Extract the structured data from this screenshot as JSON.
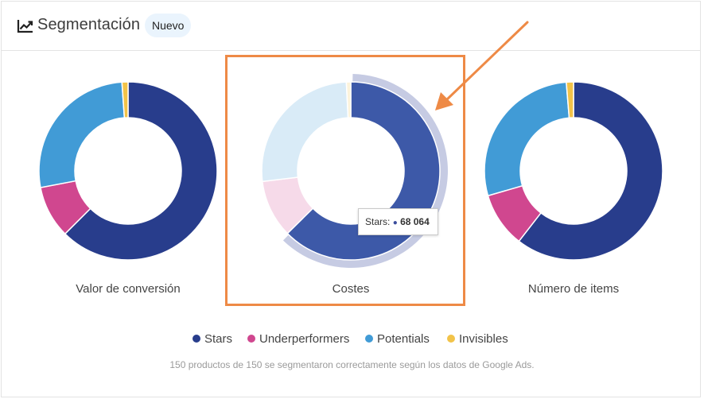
{
  "header": {
    "title": "Segmentación",
    "badge": "Nuevo"
  },
  "colors": {
    "stars": "#283d8c",
    "underperformers": "#d0478f",
    "potentials": "#419bd6",
    "invisibles": "#f2c349",
    "accent": "#ee8a46"
  },
  "chart_data": [
    {
      "type": "pie",
      "label": "Valor de conversión",
      "categories": [
        "Stars",
        "Underperformers",
        "Potentials",
        "Invisibles"
      ],
      "values": [
        62.5,
        9.5,
        26.9,
        1.1
      ]
    },
    {
      "type": "pie",
      "label": "Costes",
      "categories": [
        "Stars",
        "Underperformers",
        "Potentials",
        "Invisibles"
      ],
      "values": [
        62.6,
        10.5,
        26.1,
        0.8
      ],
      "highlighted": "Stars",
      "tooltip": {
        "series": "Stars:",
        "value": "68 064"
      }
    },
    {
      "type": "pie",
      "label": "Número de items",
      "categories": [
        "Stars",
        "Underperformers",
        "Potentials",
        "Invisibles"
      ],
      "values": [
        60.5,
        10.0,
        28.2,
        1.3
      ]
    }
  ],
  "legend": {
    "stars": "Stars",
    "underperformers": "Underperformers",
    "potentials": "Potentials",
    "invisibles": "Invisibles"
  },
  "footnote": "150 productos de 150 se segmentaron correctamente según los datos de Google Ads."
}
